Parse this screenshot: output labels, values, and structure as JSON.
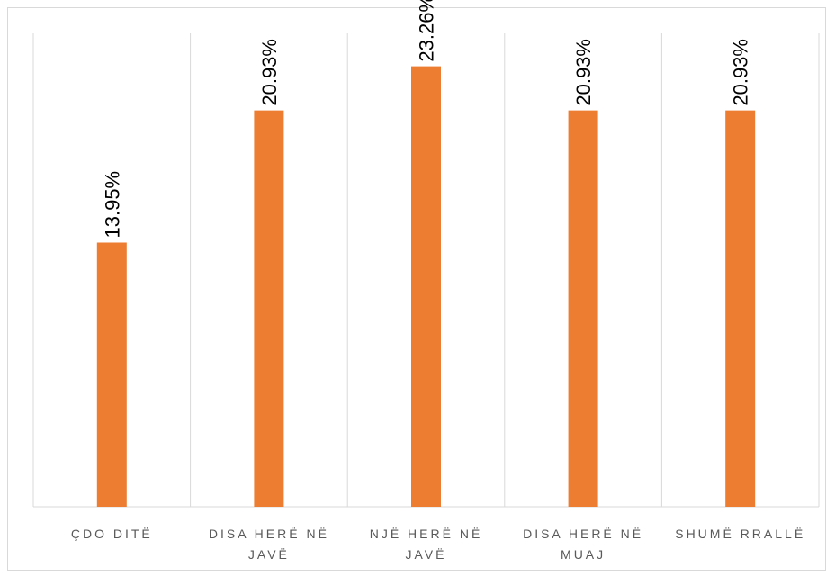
{
  "chart_data": {
    "type": "bar",
    "orientation": "vertical",
    "title": "",
    "xlabel": "",
    "ylabel": "",
    "categories": [
      [
        "ÇDO DITË"
      ],
      [
        "DISA HERË NË",
        "JAVË"
      ],
      [
        "NJË HERË NË",
        "JAVË"
      ],
      [
        "DISA HERË NË",
        "MUAJ"
      ],
      [
        "SHUMË RRALLË"
      ]
    ],
    "values": [
      13.95,
      20.93,
      23.26,
      20.93,
      20.93
    ],
    "data_labels": [
      "13.95%",
      "20.93%",
      "23.26%",
      "20.93%",
      "20.93%"
    ],
    "ylim": [
      0,
      25
    ],
    "grid": "vertical category separators",
    "legend": "none",
    "colors": {
      "bar": "#ED7D31",
      "grid": "#D9D9D9",
      "axis_text": "#595959"
    }
  }
}
